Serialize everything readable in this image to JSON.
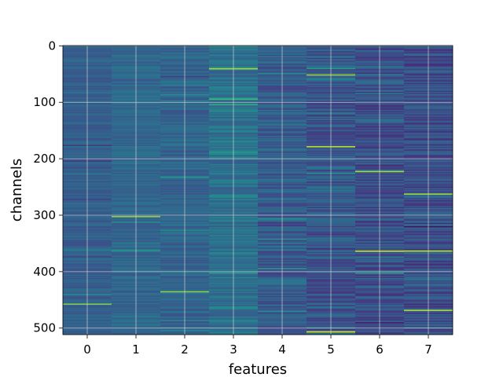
{
  "chart_data": {
    "type": "heatmap",
    "title": "",
    "xlabel": "features",
    "ylabel": "channels",
    "x_ticks": [
      "0",
      "1",
      "2",
      "3",
      "4",
      "5",
      "6",
      "7"
    ],
    "y_ticks": [
      "0",
      "100",
      "200",
      "300",
      "400",
      "500"
    ],
    "rows": 512,
    "columns": 8,
    "xlim": [
      -0.5,
      7.5
    ],
    "ylim": [
      511.5,
      -0.5
    ],
    "grid": true,
    "colormap": "viridis",
    "base_colors": [
      "#3b5a8b",
      "#375f8c",
      "#365d8c",
      "#2f6a8d",
      "#34598b",
      "#30578b",
      "#30528b",
      "#34508b"
    ],
    "highlights": [
      {
        "column": 3,
        "row": 40,
        "color": "#a5d93d"
      },
      {
        "column": 5,
        "row": 51,
        "color": "#a0da39"
      },
      {
        "column": 5,
        "row": 178,
        "color": "#b8de29"
      },
      {
        "column": 6,
        "row": 222,
        "color": "#9bd93c"
      },
      {
        "column": 7,
        "row": 262,
        "color": "#9cd93b"
      },
      {
        "column": 1,
        "row": 302,
        "color": "#8bd646"
      },
      {
        "column": 6,
        "row": 363,
        "color": "#c7e020"
      },
      {
        "column": 7,
        "row": 363,
        "color": "#bddf26"
      },
      {
        "column": 2,
        "row": 435,
        "color": "#87d549"
      },
      {
        "column": 0,
        "row": 457,
        "color": "#7ad151"
      },
      {
        "column": 7,
        "row": 468,
        "color": "#a5db36"
      },
      {
        "column": 5,
        "row": 506,
        "color": "#dde318"
      }
    ]
  }
}
